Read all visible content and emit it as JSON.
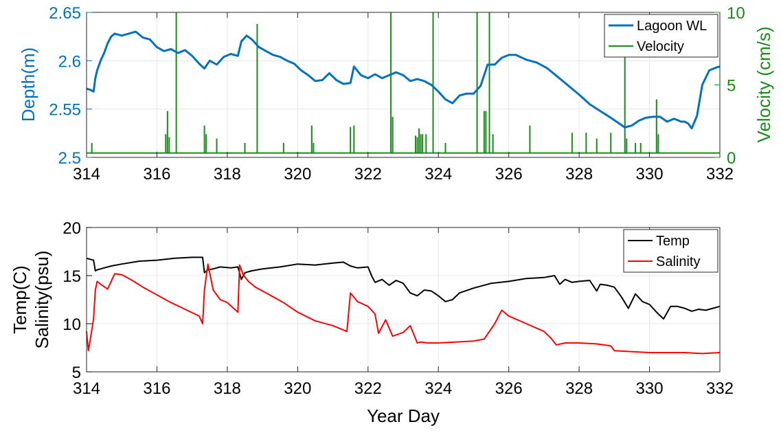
{
  "colors": {
    "lagoon": "#0072BD",
    "velocity": "#1A8A1A",
    "temp": "#000000",
    "salinity": "#FF0000",
    "grid": "#E6E6E6",
    "axis": "#262626"
  },
  "chart_data": [
    {
      "type": "line",
      "xlim": [
        314,
        332
      ],
      "x_ticks": [
        "314",
        "316",
        "318",
        "320",
        "322",
        "324",
        "326",
        "328",
        "330",
        "332"
      ],
      "ylabel": "Depth(m)",
      "ylim": [
        2.5,
        2.65
      ],
      "y_ticks": [
        "2.5",
        "2.55",
        "2.6",
        "2.65"
      ],
      "y2label": "Velocity (cm/s)",
      "y2lim": [
        0,
        10
      ],
      "y2_ticks": [
        "0",
        "5",
        "10"
      ],
      "grid": true,
      "legend": "top-right",
      "series": [
        {
          "name": "Lagoon WL",
          "axis": "left",
          "x": [
            314.0,
            314.1,
            314.2,
            314.25,
            314.3,
            314.4,
            314.5,
            314.6,
            314.7,
            314.8,
            314.9,
            315.0,
            315.2,
            315.4,
            315.6,
            315.8,
            316.0,
            316.2,
            316.4,
            316.6,
            316.8,
            317.0,
            317.2,
            317.35,
            317.5,
            317.7,
            317.9,
            318.1,
            318.3,
            318.4,
            318.55,
            318.7,
            318.9,
            319.1,
            319.3,
            319.5,
            319.7,
            319.9,
            320.1,
            320.3,
            320.5,
            320.7,
            320.9,
            321.1,
            321.3,
            321.5,
            321.6,
            321.8,
            322.0,
            322.2,
            322.4,
            322.6,
            322.8,
            323.0,
            323.2,
            323.4,
            323.6,
            323.8,
            324.0,
            324.2,
            324.4,
            324.6,
            324.8,
            325.0,
            325.2,
            325.4,
            325.6,
            325.8,
            326.0,
            326.2,
            326.5,
            326.8,
            327.1,
            327.4,
            327.7,
            328.0,
            328.3,
            328.6,
            328.9,
            329.1,
            329.3,
            329.5,
            329.7,
            329.9,
            330.1,
            330.3,
            330.5,
            330.7,
            330.9,
            331.0,
            331.1,
            331.2,
            331.35,
            331.5,
            331.7,
            331.9,
            332.0
          ],
          "values": [
            2.571,
            2.57,
            2.568,
            2.582,
            2.59,
            2.6,
            2.608,
            2.618,
            2.625,
            2.628,
            2.627,
            2.626,
            2.628,
            2.63,
            2.624,
            2.622,
            2.614,
            2.61,
            2.612,
            2.608,
            2.611,
            2.605,
            2.597,
            2.592,
            2.6,
            2.596,
            2.604,
            2.607,
            2.605,
            2.62,
            2.626,
            2.622,
            2.614,
            2.61,
            2.606,
            2.604,
            2.6,
            2.597,
            2.59,
            2.585,
            2.579,
            2.58,
            2.587,
            2.58,
            2.576,
            2.577,
            2.594,
            2.585,
            2.582,
            2.586,
            2.582,
            2.585,
            2.588,
            2.585,
            2.579,
            2.581,
            2.579,
            2.575,
            2.568,
            2.56,
            2.556,
            2.564,
            2.566,
            2.566,
            2.574,
            2.596,
            2.596,
            2.603,
            2.606,
            2.606,
            2.601,
            2.598,
            2.592,
            2.583,
            2.574,
            2.565,
            2.555,
            2.548,
            2.541,
            2.536,
            2.531,
            2.533,
            2.538,
            2.541,
            2.542,
            2.542,
            2.537,
            2.54,
            2.537,
            2.537,
            2.535,
            2.53,
            2.543,
            2.575,
            2.59,
            2.593,
            2.594
          ]
        },
        {
          "name": "Velocity",
          "axis": "right",
          "baseline": 0.3,
          "x": [
            314.15,
            316.25,
            316.3,
            316.35,
            316.55,
            317.35,
            317.4,
            317.7,
            318.5,
            318.85,
            319.6,
            320.4,
            320.45,
            321.5,
            321.6,
            322.65,
            322.7,
            323.35,
            323.4,
            323.45,
            323.5,
            323.55,
            323.65,
            323.85,
            324.2,
            325.1,
            325.3,
            325.35,
            325.45,
            325.55,
            326.6,
            327.8,
            328.2,
            328.5,
            328.9,
            329.3,
            329.35,
            329.6,
            329.75,
            330.2,
            330.25
          ],
          "values": [
            1.0,
            1.6,
            3.2,
            1.4,
            10.0,
            2.2,
            1.6,
            1.3,
            1.0,
            9.2,
            1.0,
            2.2,
            1.0,
            2.1,
            2.2,
            10.0,
            2.8,
            1.5,
            1.4,
            2.0,
            1.6,
            1.6,
            1.6,
            10.0,
            1.0,
            10.0,
            3.2,
            3.2,
            10.0,
            1.6,
            2.2,
            1.7,
            1.7,
            1.3,
            1.7,
            7.0,
            1.3,
            1.0,
            1.0,
            4.0,
            1.6
          ]
        }
      ]
    },
    {
      "type": "line",
      "xlim": [
        314,
        332
      ],
      "x_ticks": [
        "314",
        "316",
        "318",
        "320",
        "322",
        "324",
        "326",
        "328",
        "330",
        "332"
      ],
      "xlabel": "Year Day",
      "ylabel_lines": [
        "Temp(C)",
        "Salinity(psu)"
      ],
      "ylim": [
        5,
        20
      ],
      "y_ticks": [
        "5",
        "10",
        "15",
        "20"
      ],
      "grid": true,
      "legend": "top-right",
      "series": [
        {
          "name": "Temp",
          "x": [
            314.0,
            314.1,
            314.2,
            314.25,
            314.3,
            314.5,
            314.7,
            315.0,
            315.5,
            316.0,
            316.5,
            317.0,
            317.3,
            317.35,
            317.45,
            317.6,
            317.8,
            318.1,
            318.3,
            318.4,
            318.5,
            318.7,
            319.0,
            319.5,
            320.0,
            320.5,
            321.0,
            321.3,
            321.5,
            321.7,
            322.0,
            322.1,
            322.2,
            322.4,
            322.6,
            322.8,
            323.0,
            323.2,
            323.4,
            323.6,
            323.8,
            324.0,
            324.2,
            324.4,
            324.6,
            325.0,
            325.5,
            326.0,
            326.5,
            327.0,
            327.3,
            327.45,
            327.6,
            327.8,
            328.0,
            328.3,
            328.5,
            328.6,
            328.8,
            329.0,
            329.2,
            329.4,
            329.6,
            329.8,
            330.0,
            330.2,
            330.4,
            330.6,
            330.8,
            331.0,
            331.2,
            331.4,
            331.6,
            331.8,
            332.0
          ],
          "values": [
            16.8,
            16.7,
            16.6,
            15.5,
            15.6,
            15.8,
            16.0,
            16.2,
            16.5,
            16.6,
            16.8,
            16.9,
            16.9,
            15.3,
            15.6,
            15.7,
            15.9,
            15.8,
            15.9,
            14.6,
            15.3,
            15.5,
            15.7,
            15.9,
            16.2,
            16.1,
            16.3,
            16.4,
            16.0,
            15.8,
            15.9,
            15.0,
            14.3,
            14.6,
            14.0,
            14.5,
            14.2,
            13.2,
            12.9,
            13.5,
            13.4,
            12.9,
            12.3,
            12.5,
            13.2,
            13.7,
            14.2,
            14.4,
            14.7,
            14.8,
            15.0,
            14.1,
            14.6,
            14.3,
            14.4,
            14.5,
            13.4,
            14.1,
            14.0,
            13.8,
            12.8,
            11.6,
            13.1,
            12.3,
            12.0,
            11.2,
            10.5,
            11.8,
            11.8,
            11.6,
            11.3,
            11.5,
            11.4,
            11.6,
            11.8
          ]
        },
        {
          "name": "Salinity",
          "x": [
            314.0,
            314.05,
            314.1,
            314.2,
            314.25,
            314.3,
            314.4,
            314.6,
            314.8,
            315.0,
            315.3,
            315.6,
            316.0,
            316.4,
            316.8,
            317.2,
            317.3,
            317.35,
            317.45,
            317.6,
            317.8,
            318.0,
            318.3,
            318.35,
            318.45,
            318.6,
            318.8,
            319.2,
            319.6,
            320.0,
            320.5,
            321.0,
            321.4,
            321.5,
            321.7,
            322.0,
            322.2,
            322.3,
            322.5,
            322.7,
            323.0,
            323.2,
            323.4,
            323.5,
            323.7,
            324.0,
            324.5,
            325.0,
            325.3,
            325.6,
            325.8,
            326.0,
            326.5,
            327.0,
            327.2,
            327.35,
            327.6,
            328.0,
            328.5,
            328.9,
            329.0,
            329.5,
            330.0,
            330.5,
            331.0,
            331.5,
            332.0
          ],
          "values": [
            9.2,
            7.2,
            8.2,
            10.5,
            13.5,
            14.4,
            14.1,
            13.6,
            15.2,
            15.1,
            14.5,
            13.8,
            13.0,
            12.2,
            11.5,
            10.8,
            10.0,
            13.5,
            16.2,
            13.5,
            12.5,
            12.2,
            11.2,
            16.1,
            15.1,
            14.4,
            13.8,
            13.0,
            12.2,
            11.2,
            10.3,
            9.8,
            9.2,
            13.2,
            12.3,
            11.8,
            11.0,
            9.0,
            10.4,
            8.7,
            9.1,
            9.8,
            8.0,
            8.1,
            8.0,
            8.0,
            8.1,
            8.2,
            8.4,
            10.0,
            11.4,
            10.8,
            10.0,
            9.2,
            8.5,
            7.8,
            8.0,
            8.0,
            7.9,
            7.7,
            7.2,
            7.1,
            7.0,
            7.0,
            7.0,
            6.9,
            7.0
          ]
        }
      ]
    }
  ]
}
